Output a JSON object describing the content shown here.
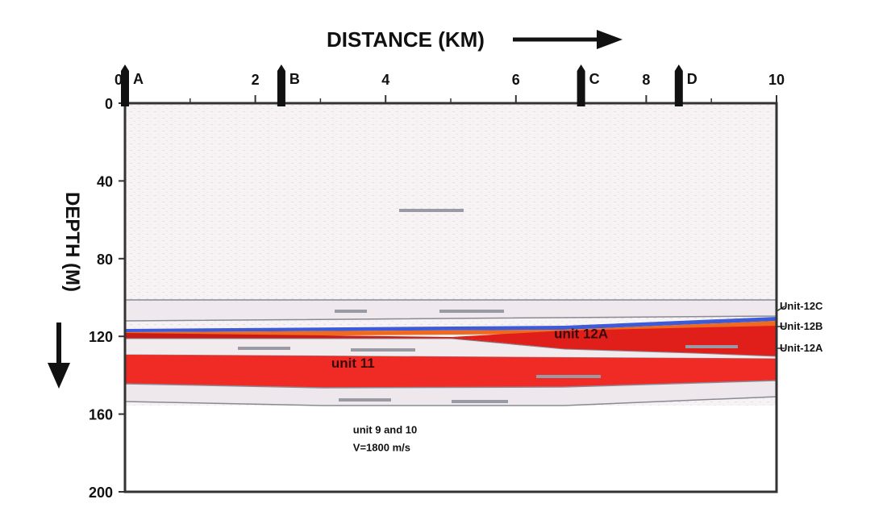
{
  "title": "DISTANCE (KM)",
  "y_axis_label": "DEPTH (M)",
  "x_ticks": [
    "0",
    "2",
    "4",
    "6",
    "8",
    "10"
  ],
  "y_ticks": [
    "0",
    "40",
    "80",
    "120",
    "160",
    "200"
  ],
  "wells": [
    {
      "label": "A",
      "x_km": 0
    },
    {
      "label": "B",
      "x_km": 2.4
    },
    {
      "label": "C",
      "x_km": 7
    },
    {
      "label": "D",
      "x_km": 8.5
    }
  ],
  "unit_labels": [
    {
      "text": "unit 12A",
      "x_km": 7,
      "y_m": 121
    },
    {
      "text": "unit 11",
      "x_km": 3.5,
      "y_m": 136
    },
    {
      "text": "unit 9 and 10",
      "x_km": 3.5,
      "y_m": 170
    },
    {
      "text": "V=1800 m/s",
      "x_km": 3.5,
      "y_m": 179
    }
  ],
  "right_labels": [
    "Unit-12C",
    "Unit-12B",
    "Unit-12A"
  ],
  "colors": {
    "red": "#f02a25",
    "dark_red": "#c81b16",
    "orange": "#ef6a1e",
    "speckle_bg": "#f7f3f5",
    "line": "#555560",
    "text": "#111111"
  }
}
